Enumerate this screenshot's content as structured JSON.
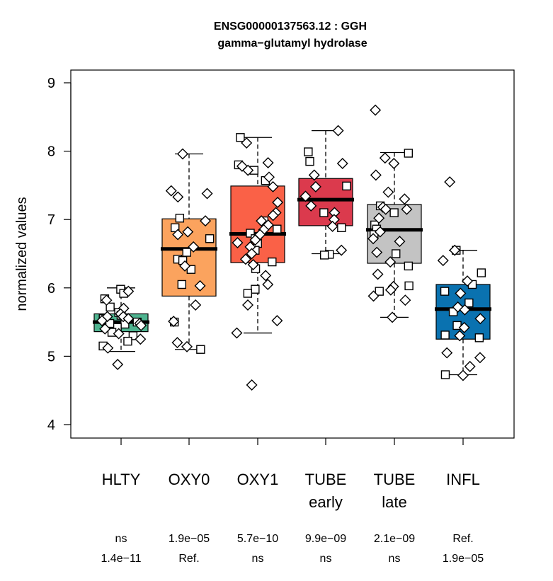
{
  "chart_data": {
    "type": "box",
    "title": "ENSG00000137563.12 : GGH",
    "subtitle": "gamma−glutamyl hydrolase",
    "ylabel": "normalized values",
    "ylim": [
      3.8,
      9.35
    ],
    "yticks": [
      "4",
      "5",
      "6",
      "7",
      "8",
      "9"
    ],
    "groups": [
      {
        "key": "HLTY",
        "label_lines": [
          "HLTY"
        ],
        "color": "#4eb38f",
        "stats": {
          "lower_whisker": 5.07,
          "q1": 5.36,
          "median": 5.5,
          "q3": 5.62,
          "upper_whisker": 6.0
        },
        "pvalues": [
          "ns",
          "1.4e−11"
        ],
        "points_square": [
          5.98,
          5.92,
          5.84,
          5.72,
          5.64,
          5.6,
          5.55,
          5.5,
          5.47,
          5.42,
          5.35,
          5.3,
          5.22,
          5.15,
          5.6,
          5.48
        ],
        "points_diamond": [
          5.95,
          5.82,
          5.7,
          5.62,
          5.58,
          5.52,
          5.48,
          5.45,
          5.4,
          5.33,
          5.25,
          5.12,
          4.88,
          5.58,
          5.55
        ]
      },
      {
        "key": "OXY0",
        "label_lines": [
          "OXY0"
        ],
        "color": "#fba35e",
        "stats": {
          "lower_whisker": 5.1,
          "q1": 5.88,
          "median": 6.57,
          "q3": 7.01,
          "upper_whisker": 7.96
        },
        "pvalues": [
          "1.9e−05",
          "Ref."
        ],
        "points_square": [
          7.02,
          6.88,
          6.72,
          6.52,
          6.42,
          6.27,
          6.05,
          5.5,
          5.1,
          6.4
        ],
        "points_diamond": [
          7.96,
          7.42,
          7.38,
          7.33,
          6.98,
          6.82,
          6.78,
          6.6,
          6.32,
          6.03,
          5.75,
          5.51,
          5.2,
          5.14
        ]
      },
      {
        "key": "OXY1",
        "label_lines": [
          "OXY1"
        ],
        "color": "#fa6147",
        "stats": {
          "lower_whisker": 5.34,
          "q1": 6.37,
          "median": 6.79,
          "q3": 7.49,
          "upper_whisker": 8.2
        },
        "pvalues": [
          "5.7e−10",
          "ns"
        ],
        "points_square": [
          8.2,
          7.8,
          7.72,
          7.57,
          6.98,
          6.86,
          6.8,
          6.72,
          6.65,
          6.55,
          6.38,
          6.28,
          5.98,
          5.92
        ],
        "points_diamond": [
          8.12,
          7.83,
          7.78,
          7.72,
          7.62,
          7.48,
          7.25,
          7.1,
          7.06,
          6.92,
          6.85,
          6.78,
          6.66,
          6.6,
          6.5,
          6.42,
          6.34,
          6.18,
          6.05,
          5.75,
          5.52,
          5.34,
          4.58,
          6.98,
          6.7
        ]
      },
      {
        "key": "TUBE early",
        "label_lines": [
          "TUBE",
          "early"
        ],
        "color": "#db3a4d",
        "stats": {
          "lower_whisker": 6.5,
          "q1": 6.91,
          "median": 7.29,
          "q3": 7.6,
          "upper_whisker": 8.3
        },
        "pvalues": [
          "9.9e−09",
          "ns"
        ],
        "points_square": [
          7.99,
          7.49,
          7.1,
          6.88,
          6.49,
          6.48,
          7.85
        ],
        "points_diamond": [
          8.3,
          7.82,
          7.48,
          7.34,
          7.2,
          7.1,
          7.0,
          6.9,
          6.55,
          7.65
        ]
      },
      {
        "key": "TUBE late",
        "label_lines": [
          "TUBE",
          "late"
        ],
        "color": "#c3c3c3",
        "stats": {
          "lower_whisker": 5.57,
          "q1": 6.36,
          "median": 6.85,
          "q3": 7.22,
          "upper_whisker": 7.98
        },
        "pvalues": [
          "2.1e−09",
          "ns"
        ],
        "points_square": [
          7.97,
          7.2,
          6.92,
          6.86,
          6.78,
          6.5,
          6.32,
          6.03,
          5.95,
          7.1
        ],
        "points_diamond": [
          8.6,
          7.9,
          7.82,
          7.65,
          7.4,
          7.18,
          7.15,
          7.15,
          7.02,
          6.82,
          6.72,
          6.68,
          6.52,
          6.38,
          6.2,
          6.02,
          5.97,
          5.88,
          5.82,
          5.57,
          7.3
        ]
      },
      {
        "key": "INFL",
        "label_lines": [
          "INFL"
        ],
        "color": "#0a72b0",
        "stats": {
          "lower_whisker": 4.73,
          "q1": 5.25,
          "median": 5.69,
          "q3": 6.05,
          "upper_whisker": 6.55
        },
        "pvalues": [
          "Ref.",
          "1.9e−05"
        ],
        "points_square": [
          6.55,
          6.22,
          6.05,
          5.78,
          5.65,
          5.45,
          5.31,
          5.27,
          4.73,
          5.95
        ],
        "points_diamond": [
          7.55,
          6.55,
          6.4,
          6.1,
          5.92,
          5.72,
          5.68,
          5.55,
          5.42,
          5.3,
          5.05,
          4.98,
          4.85,
          4.72
        ]
      }
    ]
  }
}
